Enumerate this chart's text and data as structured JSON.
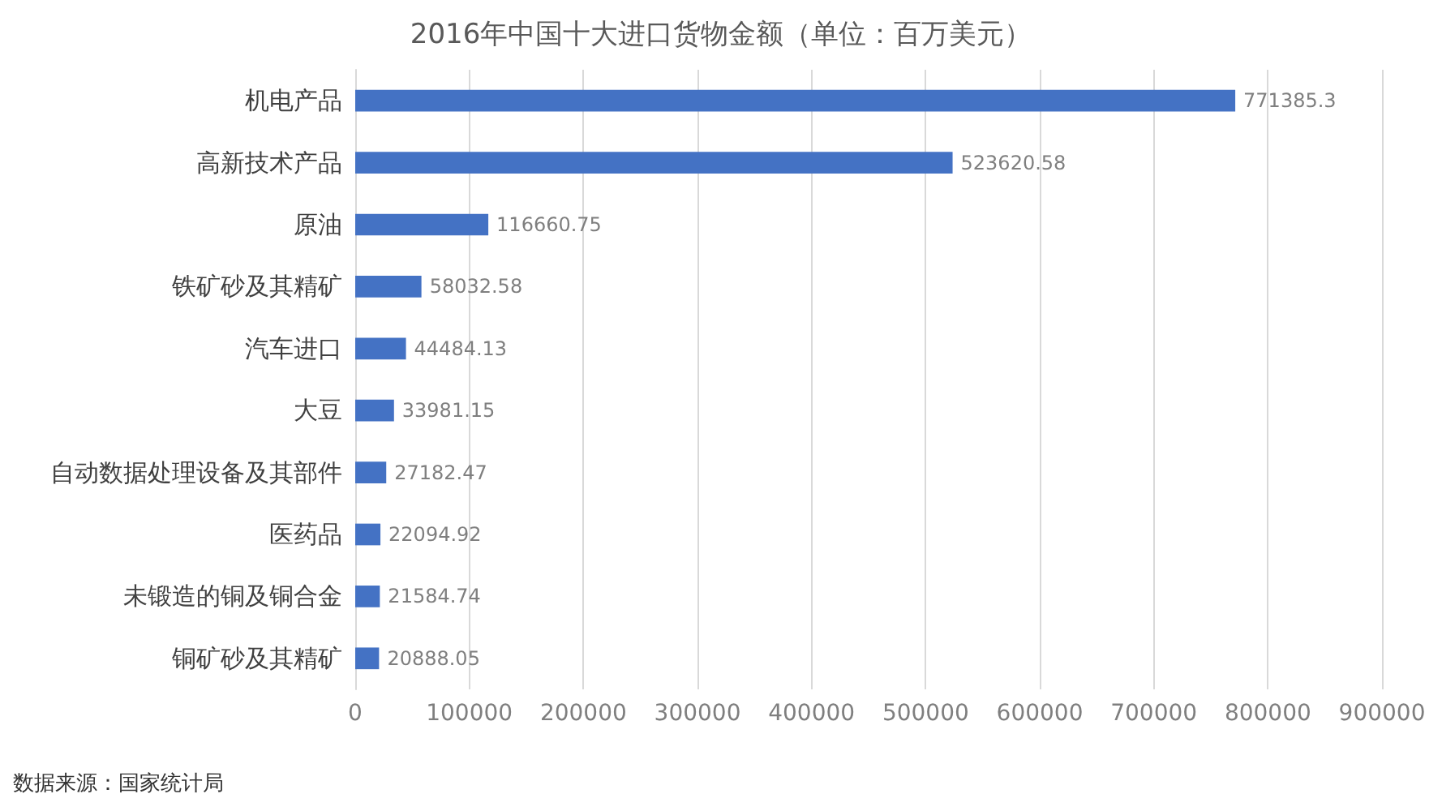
{
  "chart_data": {
    "type": "bar",
    "orientation": "horizontal",
    "title": "2016年中国十大进口货物金额（单位：百万美元）",
    "categories": [
      "机电产品",
      "高新技术产品",
      "原油",
      "铁矿砂及其精矿",
      "汽车进口",
      "大豆",
      "自动数据处理设备及其部件",
      "医药品",
      "未锻造的铜及铜合金",
      "铜矿砂及其精矿"
    ],
    "values": [
      771385.3,
      523620.58,
      116660.75,
      58032.58,
      44484.13,
      33981.15,
      27182.47,
      22094.92,
      21584.74,
      20888.05
    ],
    "color": "#4472c4",
    "xlim": [
      0,
      900000
    ],
    "xticks": [
      0,
      100000,
      200000,
      300000,
      400000,
      500000,
      600000,
      700000,
      800000,
      900000
    ],
    "grid": "x",
    "data_labels": true,
    "annotations": [
      "数据来源：国家统计局"
    ]
  }
}
